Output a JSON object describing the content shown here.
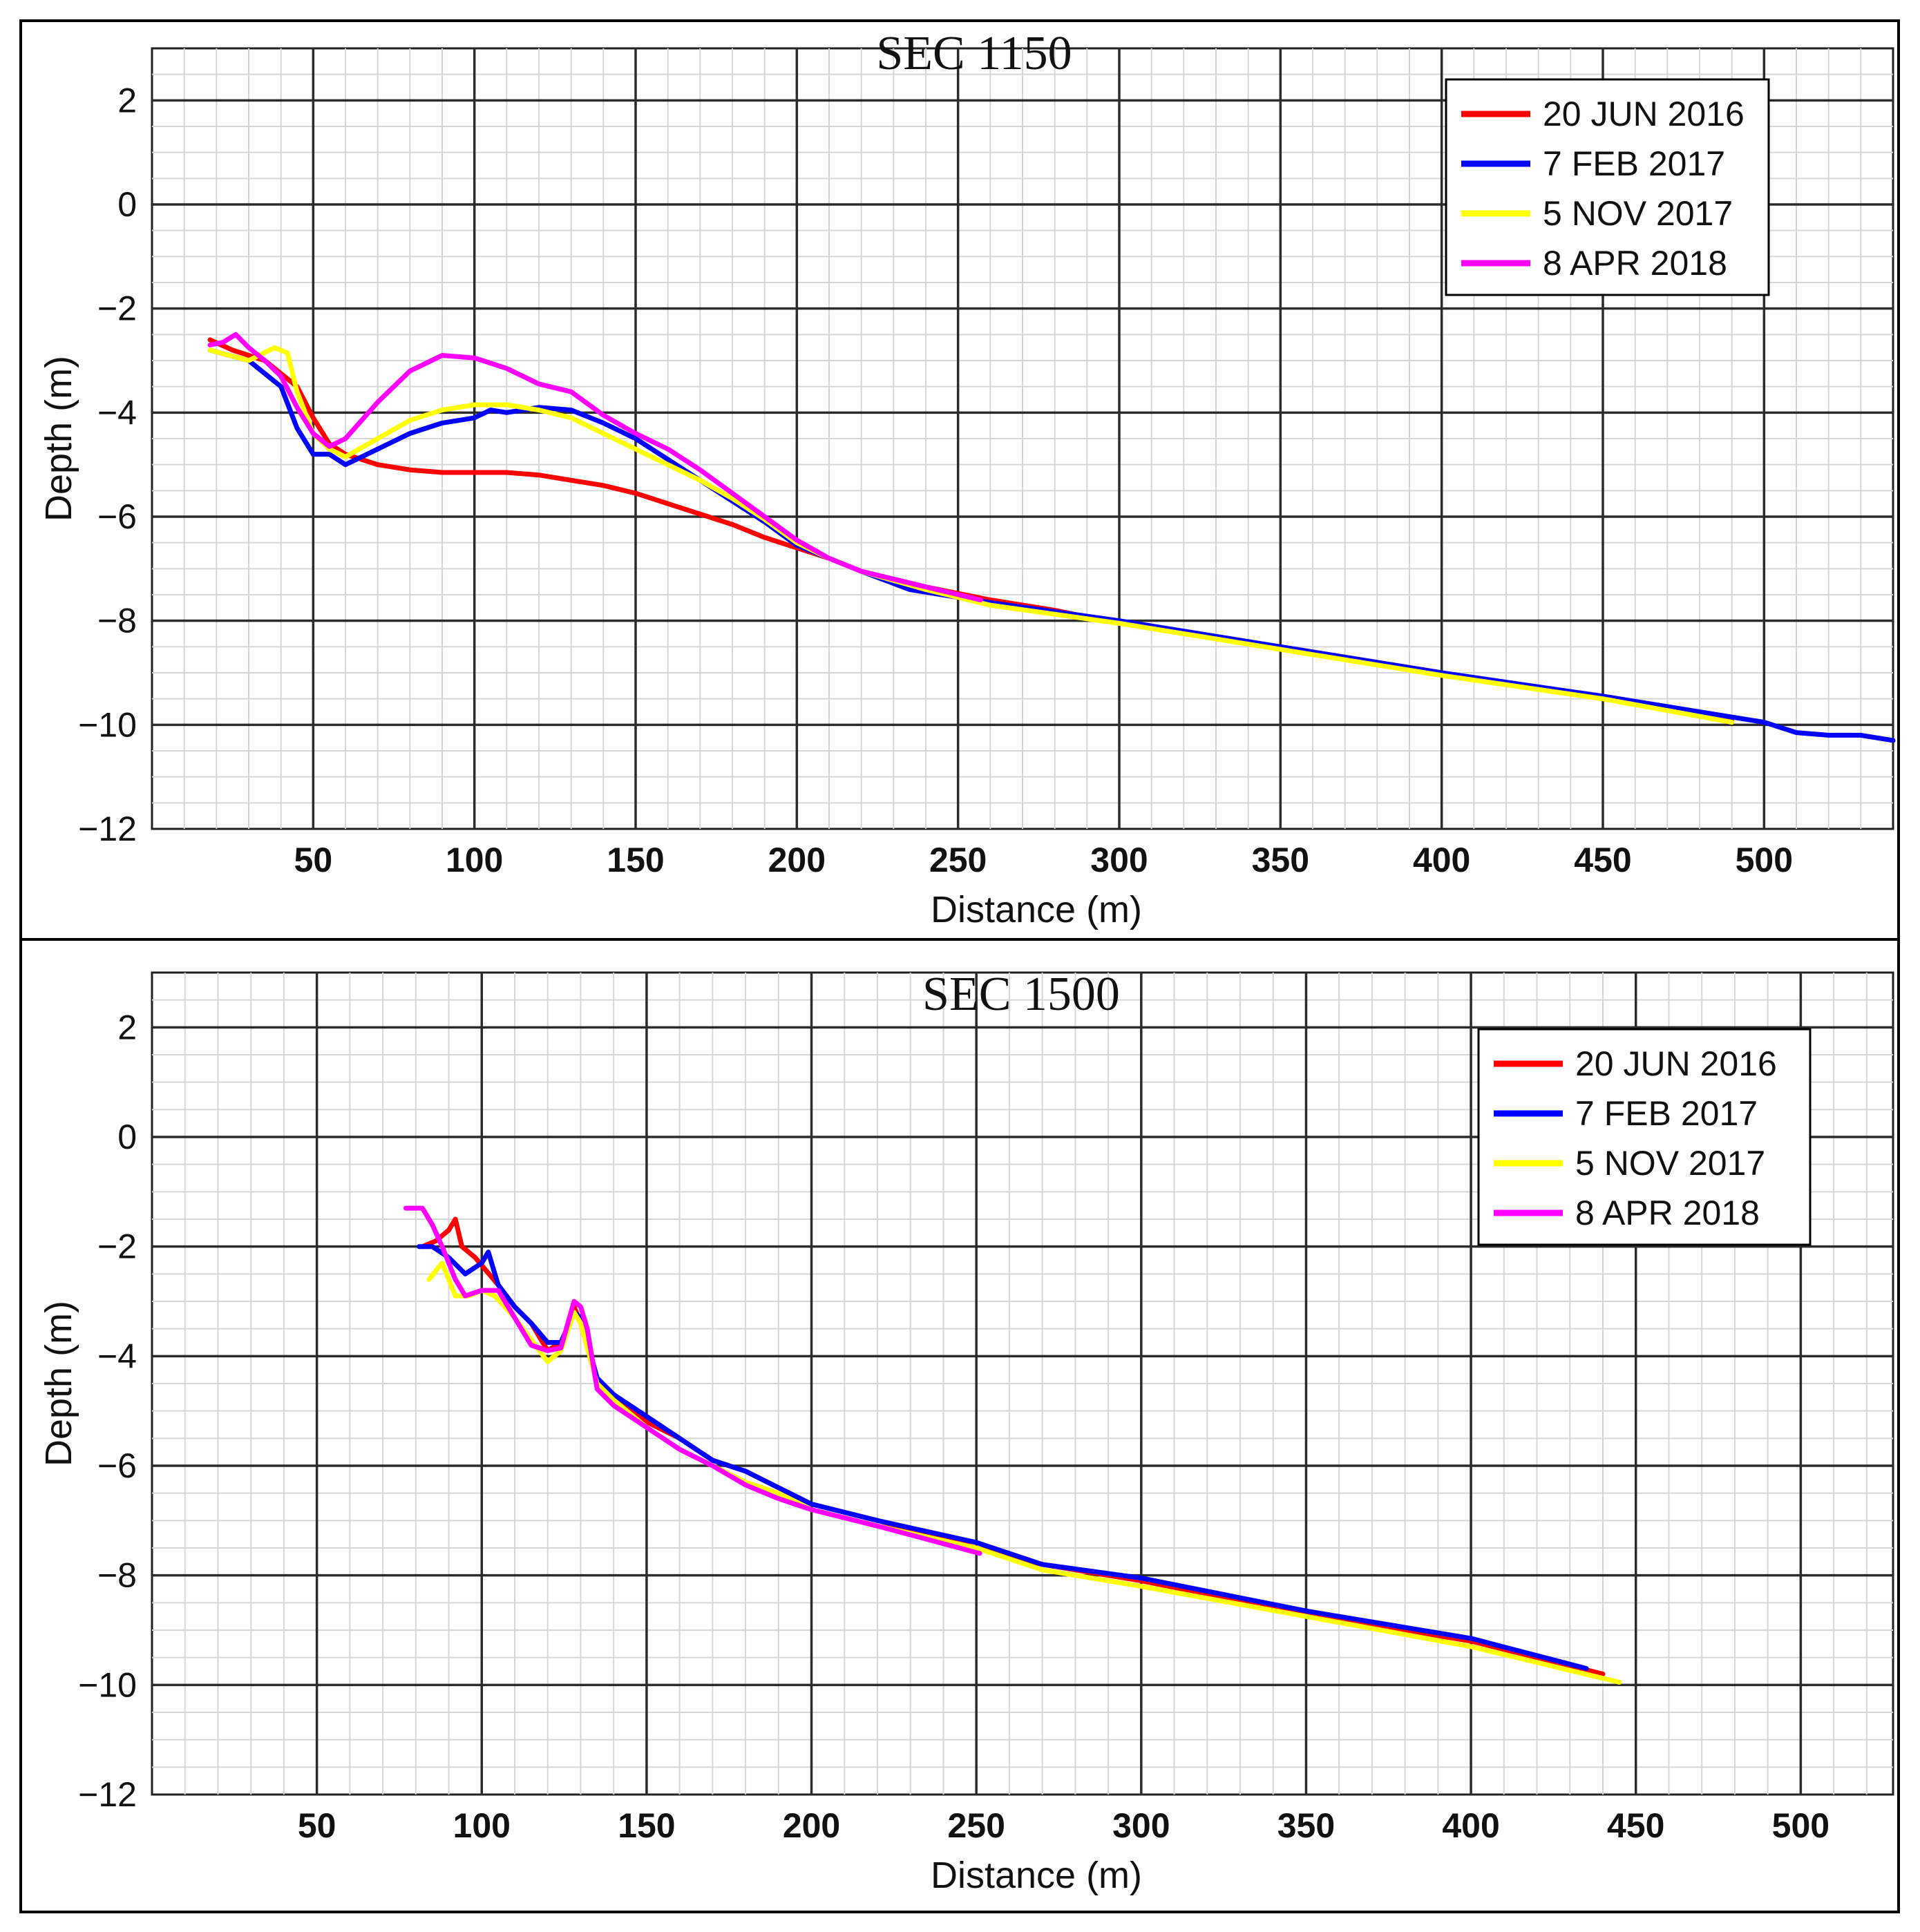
{
  "chart_data": [
    {
      "type": "line",
      "title": "SEC 1150",
      "xlabel": "Distance (m)",
      "ylabel": "Depth (m)",
      "xlim": [
        0,
        540
      ],
      "ylim": [
        -12,
        3
      ],
      "xticks": [
        50,
        100,
        150,
        200,
        250,
        300,
        350,
        400,
        450,
        500
      ],
      "yticks": [
        2,
        0,
        -2,
        -4,
        -6,
        -8,
        -10,
        -12
      ],
      "legend": "top-right",
      "series": [
        {
          "name": "20 JUN 2016",
          "color": "#ff0000",
          "x": [
            18,
            25,
            35,
            45,
            50,
            55,
            60,
            70,
            80,
            90,
            100,
            110,
            120,
            130,
            140,
            150,
            160,
            170,
            180,
            190,
            200,
            210,
            220,
            240,
            260,
            280,
            300,
            350,
            400,
            450,
            490
          ],
          "y": [
            -2.6,
            -2.8,
            -3.0,
            -3.5,
            -4.1,
            -4.6,
            -4.8,
            -5.0,
            -5.1,
            -5.15,
            -5.15,
            -5.15,
            -5.2,
            -5.3,
            -5.4,
            -5.55,
            -5.75,
            -5.95,
            -6.15,
            -6.4,
            -6.6,
            -6.8,
            -7.05,
            -7.35,
            -7.6,
            -7.8,
            -8.05,
            -8.5,
            -9.0,
            -9.5,
            -9.9
          ]
        },
        {
          "name": "7 FEB 2017",
          "color": "#0000ff",
          "x": [
            18,
            30,
            40,
            45,
            50,
            55,
            60,
            70,
            80,
            90,
            100,
            105,
            110,
            120,
            130,
            140,
            150,
            160,
            170,
            180,
            190,
            200,
            210,
            220,
            235,
            260,
            300,
            350,
            400,
            450,
            500,
            510,
            520,
            530,
            540
          ],
          "y": [
            -2.8,
            -3.0,
            -3.5,
            -4.3,
            -4.8,
            -4.8,
            -5.0,
            -4.7,
            -4.4,
            -4.2,
            -4.1,
            -3.95,
            -4.0,
            -3.9,
            -3.95,
            -4.2,
            -4.5,
            -4.9,
            -5.3,
            -5.7,
            -6.1,
            -6.55,
            -6.8,
            -7.05,
            -7.4,
            -7.65,
            -8.0,
            -8.5,
            -9.0,
            -9.45,
            -9.95,
            -10.15,
            -10.2,
            -10.2,
            -10.3
          ]
        },
        {
          "name": "5 NOV 2017",
          "color": "#ffff00",
          "x": [
            18,
            30,
            38,
            42,
            45,
            50,
            55,
            60,
            70,
            80,
            90,
            100,
            110,
            120,
            130,
            140,
            150,
            160,
            170,
            180,
            190,
            200,
            210,
            220,
            240,
            260,
            300,
            350,
            400,
            450,
            490
          ],
          "y": [
            -2.8,
            -3.0,
            -2.75,
            -2.85,
            -3.6,
            -4.4,
            -4.7,
            -4.85,
            -4.5,
            -4.15,
            -3.95,
            -3.85,
            -3.85,
            -3.95,
            -4.1,
            -4.4,
            -4.7,
            -5.0,
            -5.3,
            -5.65,
            -6.05,
            -6.5,
            -6.8,
            -7.05,
            -7.4,
            -7.7,
            -8.05,
            -8.55,
            -9.05,
            -9.5,
            -9.95
          ]
        },
        {
          "name": "8 APR 2018",
          "color": "#ff00ff",
          "x": [
            18,
            22,
            26,
            30,
            35,
            40,
            45,
            50,
            55,
            60,
            70,
            80,
            90,
            100,
            110,
            120,
            130,
            140,
            150,
            160,
            170,
            180,
            190,
            200,
            210,
            220,
            240,
            257
          ],
          "y": [
            -2.7,
            -2.65,
            -2.5,
            -2.75,
            -3.0,
            -3.3,
            -3.9,
            -4.4,
            -4.65,
            -4.5,
            -3.8,
            -3.2,
            -2.9,
            -2.95,
            -3.15,
            -3.45,
            -3.6,
            -4.05,
            -4.4,
            -4.7,
            -5.1,
            -5.55,
            -6.0,
            -6.45,
            -6.8,
            -7.05,
            -7.35,
            -7.6
          ]
        }
      ]
    },
    {
      "type": "line",
      "title": "SEC 1500",
      "xlabel": "Distance (m)",
      "ylabel": "Depth (m)",
      "xlim": [
        0,
        528
      ],
      "ylim": [
        -12,
        3
      ],
      "xticks": [
        50,
        100,
        150,
        200,
        250,
        300,
        350,
        400,
        450,
        500
      ],
      "yticks": [
        2,
        0,
        -2,
        -4,
        -6,
        -8,
        -10,
        -12
      ],
      "legend": "top-right",
      "series": [
        {
          "name": "20 JUN 2016",
          "color": "#ff0000",
          "x": [
            82,
            86,
            90,
            92,
            94,
            98,
            105,
            110,
            115,
            120,
            125,
            128,
            130,
            135,
            140,
            150,
            160,
            170,
            180,
            190,
            200,
            220,
            250,
            270,
            300,
            350,
            400,
            440
          ],
          "y": [
            -2.0,
            -1.9,
            -1.7,
            -1.5,
            -2.0,
            -2.2,
            -2.7,
            -3.1,
            -3.4,
            -3.9,
            -3.7,
            -3.1,
            -3.4,
            -4.5,
            -4.8,
            -5.2,
            -5.5,
            -5.9,
            -6.1,
            -6.4,
            -6.7,
            -7.0,
            -7.5,
            -7.8,
            -8.1,
            -8.7,
            -9.2,
            -9.8
          ]
        },
        {
          "name": "7 FEB 2017",
          "color": "#0000ff",
          "x": [
            81,
            85,
            90,
            95,
            100,
            102,
            105,
            110,
            115,
            120,
            124,
            128,
            130,
            135,
            140,
            150,
            160,
            170,
            180,
            190,
            200,
            220,
            250,
            270,
            300,
            350,
            400,
            435
          ],
          "y": [
            -2.0,
            -2.0,
            -2.2,
            -2.5,
            -2.3,
            -2.1,
            -2.7,
            -3.1,
            -3.4,
            -3.75,
            -3.75,
            -3.2,
            -3.3,
            -4.4,
            -4.7,
            -5.1,
            -5.5,
            -5.9,
            -6.1,
            -6.4,
            -6.7,
            -7.0,
            -7.4,
            -7.8,
            -8.05,
            -8.65,
            -9.15,
            -9.7
          ]
        },
        {
          "name": "5 NOV 2017",
          "color": "#ffff00",
          "x": [
            84,
            88,
            92,
            96,
            100,
            104,
            110,
            115,
            120,
            124,
            128,
            130,
            135,
            140,
            150,
            160,
            170,
            180,
            190,
            200,
            220,
            250,
            270,
            300,
            350,
            400,
            445
          ],
          "y": [
            -2.6,
            -2.3,
            -2.9,
            -2.9,
            -2.8,
            -2.9,
            -3.3,
            -3.7,
            -4.1,
            -3.9,
            -3.2,
            -3.4,
            -4.5,
            -4.8,
            -5.3,
            -5.7,
            -6.0,
            -6.3,
            -6.5,
            -6.8,
            -7.1,
            -7.5,
            -7.9,
            -8.2,
            -8.75,
            -9.3,
            -9.95
          ]
        },
        {
          "name": "8 APR 2018",
          "color": "#ff00ff",
          "x": [
            77,
            82,
            85,
            88,
            90,
            92,
            95,
            100,
            105,
            110,
            115,
            120,
            124,
            128,
            130,
            132,
            135,
            140,
            150,
            160,
            170,
            180,
            190,
            200,
            220,
            251
          ],
          "y": [
            -1.3,
            -1.3,
            -1.6,
            -2.0,
            -2.3,
            -2.6,
            -2.9,
            -2.8,
            -2.8,
            -3.3,
            -3.8,
            -3.9,
            -3.85,
            -3.0,
            -3.1,
            -3.5,
            -4.6,
            -4.9,
            -5.3,
            -5.7,
            -6.0,
            -6.35,
            -6.6,
            -6.8,
            -7.1,
            -7.6
          ]
        }
      ]
    }
  ]
}
